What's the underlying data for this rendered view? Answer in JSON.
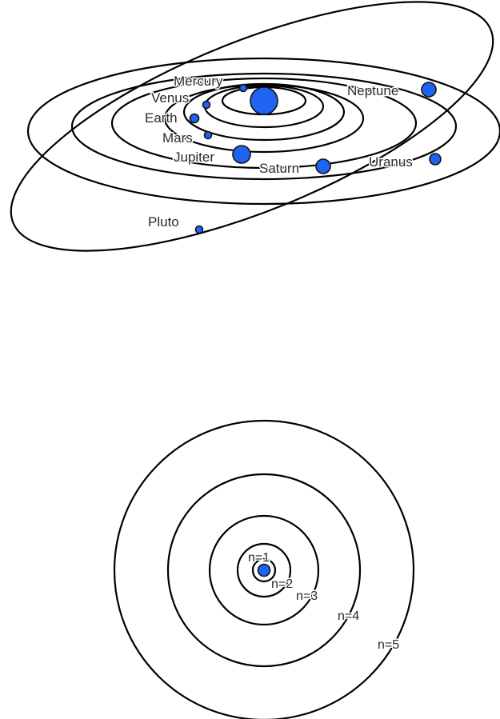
{
  "colors": {
    "body_fill": "#1e64f0",
    "outline": "#000000",
    "background": "#ffffff"
  },
  "solar_system": {
    "sun": {
      "name": ""
    },
    "planets": [
      {
        "id": "mercury",
        "label": "Mercury"
      },
      {
        "id": "venus",
        "label": "Venus"
      },
      {
        "id": "earth",
        "label": "Earth"
      },
      {
        "id": "mars",
        "label": "Mars"
      },
      {
        "id": "jupiter",
        "label": "Jupiter"
      },
      {
        "id": "saturn",
        "label": "Saturn"
      },
      {
        "id": "uranus",
        "label": "Uranus"
      },
      {
        "id": "neptune",
        "label": "Neptune"
      },
      {
        "id": "pluto",
        "label": "Pluto"
      }
    ]
  },
  "atom": {
    "nucleus": {
      "name": ""
    },
    "shells": [
      {
        "id": "n1",
        "label": "n=1"
      },
      {
        "id": "n2",
        "label": "n=2"
      },
      {
        "id": "n3",
        "label": "n=3"
      },
      {
        "id": "n4",
        "label": "n=4"
      },
      {
        "id": "n5",
        "label": "n=5"
      }
    ]
  }
}
